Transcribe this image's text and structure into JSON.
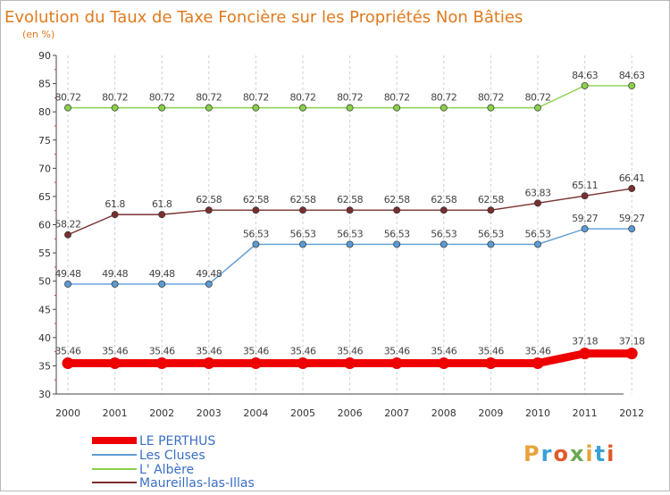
{
  "chart_data": {
    "type": "line",
    "title": "Evolution du Taux de Taxe Foncière sur les Propriétés Non Bâties",
    "subtitle": "(en %)",
    "xlabel": "",
    "ylabel": "",
    "x": [
      "2000",
      "2001",
      "2002",
      "2003",
      "2004",
      "2005",
      "2006",
      "2007",
      "2008",
      "2009",
      "2010",
      "2011",
      "2012"
    ],
    "ylim": [
      30,
      90
    ],
    "yticks": [
      30,
      35,
      40,
      45,
      50,
      55,
      60,
      65,
      70,
      75,
      80,
      85,
      90
    ],
    "grid": "vertical",
    "legend_position": "bottom-left",
    "series": [
      {
        "name": "L' Albère",
        "color": "#8ad04a",
        "values": [
          80.72,
          80.72,
          80.72,
          80.72,
          80.72,
          80.72,
          80.72,
          80.72,
          80.72,
          80.72,
          80.72,
          84.63,
          84.63
        ],
        "labels": [
          "80.72",
          "80.72",
          "80.72",
          "80.72",
          "80.72",
          "80.72",
          "80.72",
          "80.72",
          "80.72",
          "80.72",
          "80.72",
          "84.63",
          "84.63"
        ]
      },
      {
        "name": "Maureillas-las-Illas",
        "color": "#7a2f2f",
        "values": [
          58.22,
          61.8,
          61.8,
          62.58,
          62.58,
          62.58,
          62.58,
          62.58,
          62.58,
          62.58,
          63.83,
          65.11,
          66.41
        ],
        "labels": [
          "58.22",
          "61.8",
          "61.8",
          "62.58",
          "62.58",
          "62.58",
          "62.58",
          "62.58",
          "62.58",
          "62.58",
          "63.83",
          "65.11",
          "66.41"
        ]
      },
      {
        "name": "Les Cluses",
        "color": "#5b9bd5",
        "values": [
          49.48,
          49.48,
          49.48,
          49.48,
          56.53,
          56.53,
          56.53,
          56.53,
          56.53,
          56.53,
          56.53,
          59.27,
          59.27
        ],
        "labels": [
          "49.48",
          "49.48",
          "49.48",
          "49.48",
          "56.53",
          "56.53",
          "56.53",
          "56.53",
          "56.53",
          "56.53",
          "56.53",
          "59.27",
          "59.27"
        ]
      },
      {
        "name": "LE PERTHUS",
        "color": "#ee0000",
        "values": [
          35.46,
          35.46,
          35.46,
          35.46,
          35.46,
          35.46,
          35.46,
          35.46,
          35.46,
          35.46,
          35.46,
          37.18,
          37.18
        ],
        "labels": [
          "35.46",
          "35.46",
          "35.46",
          "35.46",
          "35.46",
          "35.46",
          "35.46",
          "35.46",
          "35.46",
          "35.46",
          "35.46",
          "37.18",
          "37.18"
        ]
      }
    ]
  },
  "legend": [
    {
      "name": "LE PERTHUS",
      "color": "#ee0000"
    },
    {
      "name": "Les Cluses",
      "color": "#5b9bd5"
    },
    {
      "name": "L' Albère",
      "color": "#8ad04a"
    },
    {
      "name": "Maureillas-las-Illas",
      "color": "#7a2f2f"
    }
  ],
  "logo": {
    "text": "Proxiti"
  }
}
